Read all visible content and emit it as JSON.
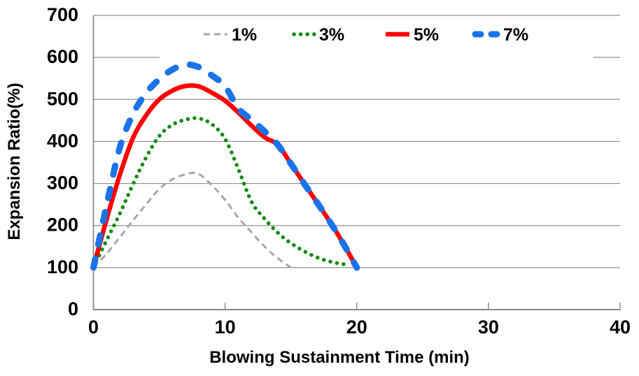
{
  "chart_data": {
    "type": "line",
    "title": "",
    "xlabel": "Blowing Sustainment Time (min)",
    "ylabel": "Expansion Ratio(%)",
    "xlim": [
      0,
      40
    ],
    "ylim": [
      0,
      700
    ],
    "x_ticks": [
      0,
      10,
      20,
      30,
      40
    ],
    "y_ticks": [
      0,
      100,
      200,
      300,
      400,
      500,
      600,
      700
    ],
    "grid": "horizontal-only",
    "legend_position": "top-center-inside",
    "colors": {
      "grid": "#8f8f8f",
      "axis": "#898989",
      "text": "#000000",
      "background": "#ffffff"
    },
    "series": [
      {
        "name": "1%",
        "color": "#a6a6a6",
        "style": "dashed",
        "points": [
          [
            0,
            100
          ],
          [
            1,
            133
          ],
          [
            2,
            172
          ],
          [
            3,
            212
          ],
          [
            4,
            250
          ],
          [
            5,
            287
          ],
          [
            6,
            310
          ],
          [
            7,
            322
          ],
          [
            7.5,
            325
          ],
          [
            8,
            323
          ],
          [
            9,
            296
          ],
          [
            10,
            261
          ],
          [
            11,
            219
          ],
          [
            12,
            184
          ],
          [
            13,
            150
          ],
          [
            14,
            122
          ],
          [
            15,
            100
          ]
        ]
      },
      {
        "name": "3%",
        "color": "#108a10",
        "style": "dotted",
        "points": [
          [
            0,
            100
          ],
          [
            1,
            165
          ],
          [
            2,
            228
          ],
          [
            3,
            298
          ],
          [
            4,
            362
          ],
          [
            5,
            413
          ],
          [
            6,
            440
          ],
          [
            7,
            452
          ],
          [
            8,
            455
          ],
          [
            9,
            441
          ],
          [
            10,
            406
          ],
          [
            11,
            335
          ],
          [
            12,
            257
          ],
          [
            13,
            216
          ],
          [
            14,
            183
          ],
          [
            15,
            158
          ],
          [
            16,
            139
          ],
          [
            17,
            124
          ],
          [
            18,
            114
          ],
          [
            19,
            108
          ],
          [
            19.5,
            106
          ]
        ]
      },
      {
        "name": "5%",
        "color": "#fd0000",
        "style": "solid",
        "points": [
          [
            0,
            100
          ],
          [
            1,
            215
          ],
          [
            2,
            320
          ],
          [
            3,
            408
          ],
          [
            4,
            462
          ],
          [
            5,
            500
          ],
          [
            6,
            521
          ],
          [
            7,
            532
          ],
          [
            8,
            531
          ],
          [
            9,
            516
          ],
          [
            10,
            497
          ],
          [
            11,
            469
          ],
          [
            12,
            438
          ],
          [
            13,
            410
          ],
          [
            14,
            392
          ],
          [
            15,
            347
          ],
          [
            16,
            300
          ],
          [
            17,
            254
          ],
          [
            18,
            207
          ],
          [
            19,
            156
          ],
          [
            20,
            100
          ]
        ]
      },
      {
        "name": "7%",
        "color": "#1a73e8",
        "style": "long-dash",
        "points": [
          [
            0,
            100
          ],
          [
            1,
            248
          ],
          [
            2,
            385
          ],
          [
            3,
            465
          ],
          [
            4,
            515
          ],
          [
            5,
            548
          ],
          [
            6,
            571
          ],
          [
            7,
            583
          ],
          [
            8,
            577
          ],
          [
            9,
            557
          ],
          [
            10,
            531
          ],
          [
            11,
            479
          ],
          [
            12,
            452
          ],
          [
            13,
            424
          ],
          [
            14,
            392
          ],
          [
            15,
            347
          ],
          [
            16,
            300
          ],
          [
            17,
            254
          ],
          [
            18,
            207
          ],
          [
            19,
            156
          ],
          [
            20,
            100
          ]
        ]
      }
    ]
  }
}
